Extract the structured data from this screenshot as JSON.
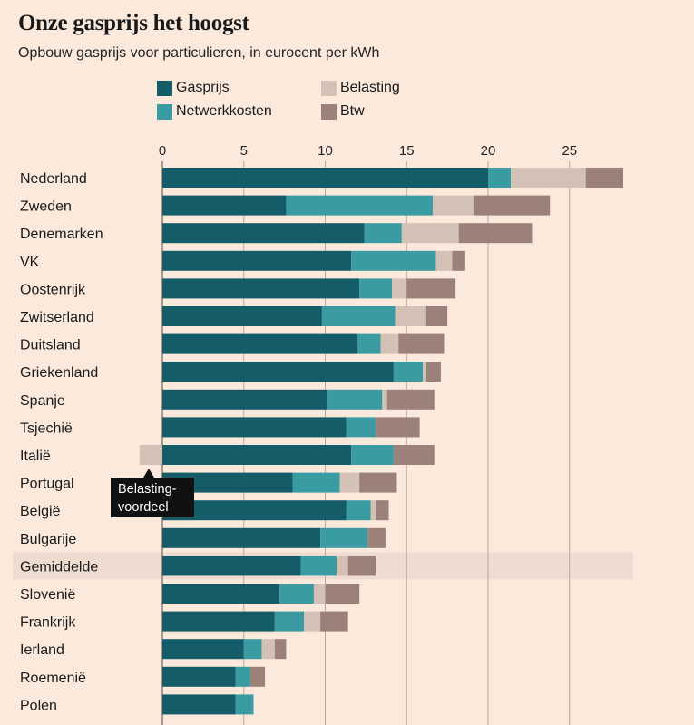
{
  "chart_data": {
    "type": "bar",
    "stacked": true,
    "orientation": "horizontal",
    "title": "Onze gasprijs het hoogst",
    "subtitle": "Opbouw gasprijs voor particulieren, in eurocent per kWh",
    "xlim": [
      -1.5,
      29
    ],
    "ticks": [
      0,
      5,
      10,
      15,
      20,
      25
    ],
    "highlight_category": "Gemiddelde",
    "annotation": {
      "text_line1": "Belasting-",
      "text_line2": "voordeel",
      "category": "Italië"
    },
    "series": [
      {
        "name": "Gasprijs",
        "color": "#145c68"
      },
      {
        "name": "Belasting",
        "color": "#d4c1b5"
      },
      {
        "name": "Netwerkkosten",
        "color": "#3b9ba3"
      },
      {
        "name": "Btw",
        "color": "#9b817a"
      }
    ],
    "categories": [
      "Nederland",
      "Zweden",
      "Denemarken",
      "VK",
      "Oostenrijk",
      "Zwitserland",
      "Duitsland",
      "Griekenland",
      "Spanje",
      "Tsjechië",
      "Italië",
      "Portugal",
      "België",
      "Bulgarije",
      "Gemiddelde",
      "Slovenië",
      "Frankrijk",
      "Ierland",
      "Roemenië",
      "Polen"
    ],
    "values": {
      "Gasprijs": [
        20.0,
        7.6,
        12.4,
        11.6,
        12.1,
        9.8,
        12.0,
        14.2,
        10.1,
        11.3,
        11.6,
        8.0,
        11.3,
        9.7,
        8.5,
        7.2,
        6.9,
        5.0,
        4.5,
        4.5
      ],
      "Netwerkkosten": [
        1.4,
        9.0,
        2.3,
        5.2,
        2.0,
        4.5,
        1.4,
        1.8,
        3.4,
        1.8,
        2.6,
        2.9,
        1.5,
        2.9,
        2.2,
        2.1,
        1.8,
        1.1,
        0.9,
        1.1
      ],
      "Belasting": [
        4.6,
        2.5,
        3.5,
        1.0,
        0.9,
        1.9,
        1.1,
        0.2,
        0.3,
        0.0,
        -1.4,
        1.2,
        0.3,
        0.0,
        0.7,
        0.7,
        1.0,
        0.8,
        0.0,
        0.0
      ],
      "Btw": [
        2.3,
        4.7,
        4.5,
        0.8,
        3.0,
        1.3,
        2.8,
        0.9,
        2.9,
        2.7,
        2.5,
        2.3,
        0.8,
        1.1,
        1.7,
        2.1,
        1.7,
        0.7,
        0.9,
        0.0
      ]
    }
  }
}
